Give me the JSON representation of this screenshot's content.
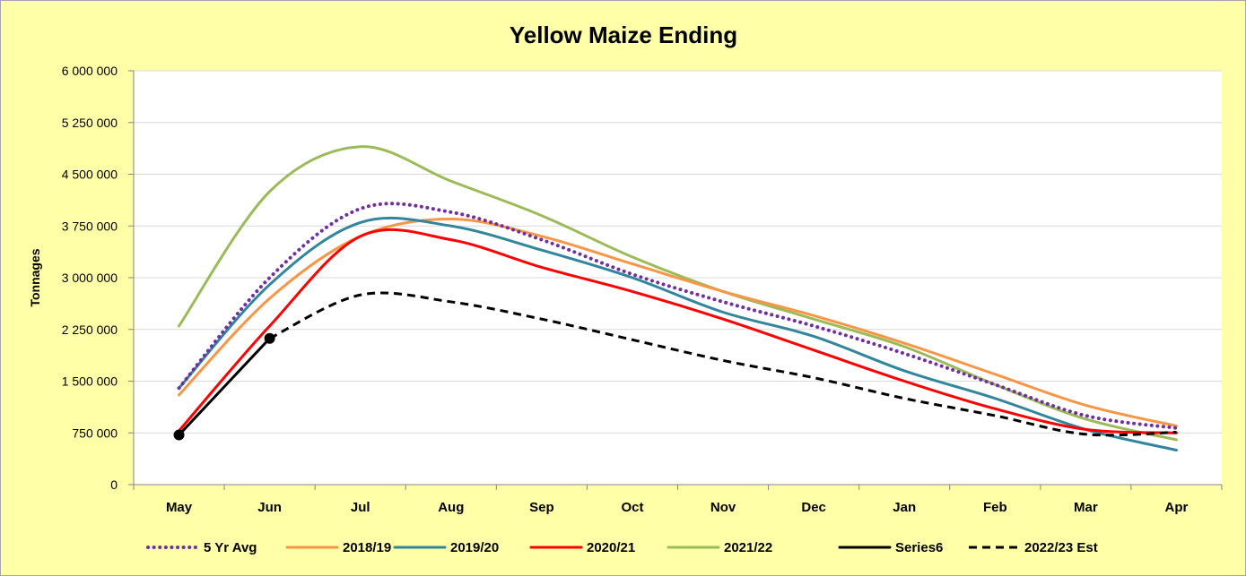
{
  "chart_data": {
    "type": "line",
    "title": "Yellow Maize Ending",
    "xlabel": "",
    "ylabel": "Tonnages",
    "categories": [
      "May",
      "Jun",
      "Jul",
      "Aug",
      "Sep",
      "Oct",
      "Nov",
      "Dec",
      "Jan",
      "Feb",
      "Mar",
      "Apr"
    ],
    "ylim": [
      0,
      6000000
    ],
    "yticks": [
      0,
      750000,
      1500000,
      2250000,
      3000000,
      3750000,
      4500000,
      5250000,
      6000000
    ],
    "ytick_labels": [
      "0",
      "750 000",
      "1 500 000",
      "2 250 000",
      "3 000 000",
      "3 750 000",
      "4 500 000",
      "5 250 000",
      "6 000 000"
    ],
    "grid": true,
    "legend_position": "bottom",
    "series": [
      {
        "name": "5 Yr Avg",
        "color": "#7030a0",
        "style": "dotted",
        "values": [
          1400000,
          3000000,
          4000000,
          3950000,
          3550000,
          3050000,
          2650000,
          2300000,
          1900000,
          1450000,
          1000000,
          820000
        ]
      },
      {
        "name": "2018/19",
        "color": "#f79646",
        "style": "solid",
        "values": [
          1300000,
          2700000,
          3600000,
          3850000,
          3600000,
          3200000,
          2800000,
          2450000,
          2050000,
          1600000,
          1150000,
          850000
        ]
      },
      {
        "name": "2019/20",
        "color": "#31859c",
        "style": "solid",
        "values": [
          1400000,
          2900000,
          3800000,
          3750000,
          3400000,
          3000000,
          2500000,
          2150000,
          1650000,
          1250000,
          800000,
          500000
        ]
      },
      {
        "name": "2020/21",
        "color": "#ff0000",
        "style": "solid",
        "values": [
          780000,
          2300000,
          3600000,
          3550000,
          3150000,
          2800000,
          2400000,
          1950000,
          1500000,
          1100000,
          800000,
          750000
        ]
      },
      {
        "name": "2021/22",
        "color": "#9bbb59",
        "style": "solid",
        "values": [
          2300000,
          4250000,
          4900000,
          4400000,
          3900000,
          3300000,
          2800000,
          2400000,
          2000000,
          1450000,
          950000,
          650000
        ]
      },
      {
        "name": "Series6",
        "color": "#000000",
        "style": "solid-markers",
        "values": [
          720000,
          2120000,
          null,
          null,
          null,
          null,
          null,
          null,
          null,
          null,
          null,
          null
        ]
      },
      {
        "name": "2022/23 Est",
        "color": "#000000",
        "style": "dashed",
        "values": [
          null,
          2120000,
          2750000,
          2650000,
          2400000,
          2100000,
          1800000,
          1550000,
          1250000,
          1000000,
          730000,
          760000
        ]
      }
    ]
  }
}
